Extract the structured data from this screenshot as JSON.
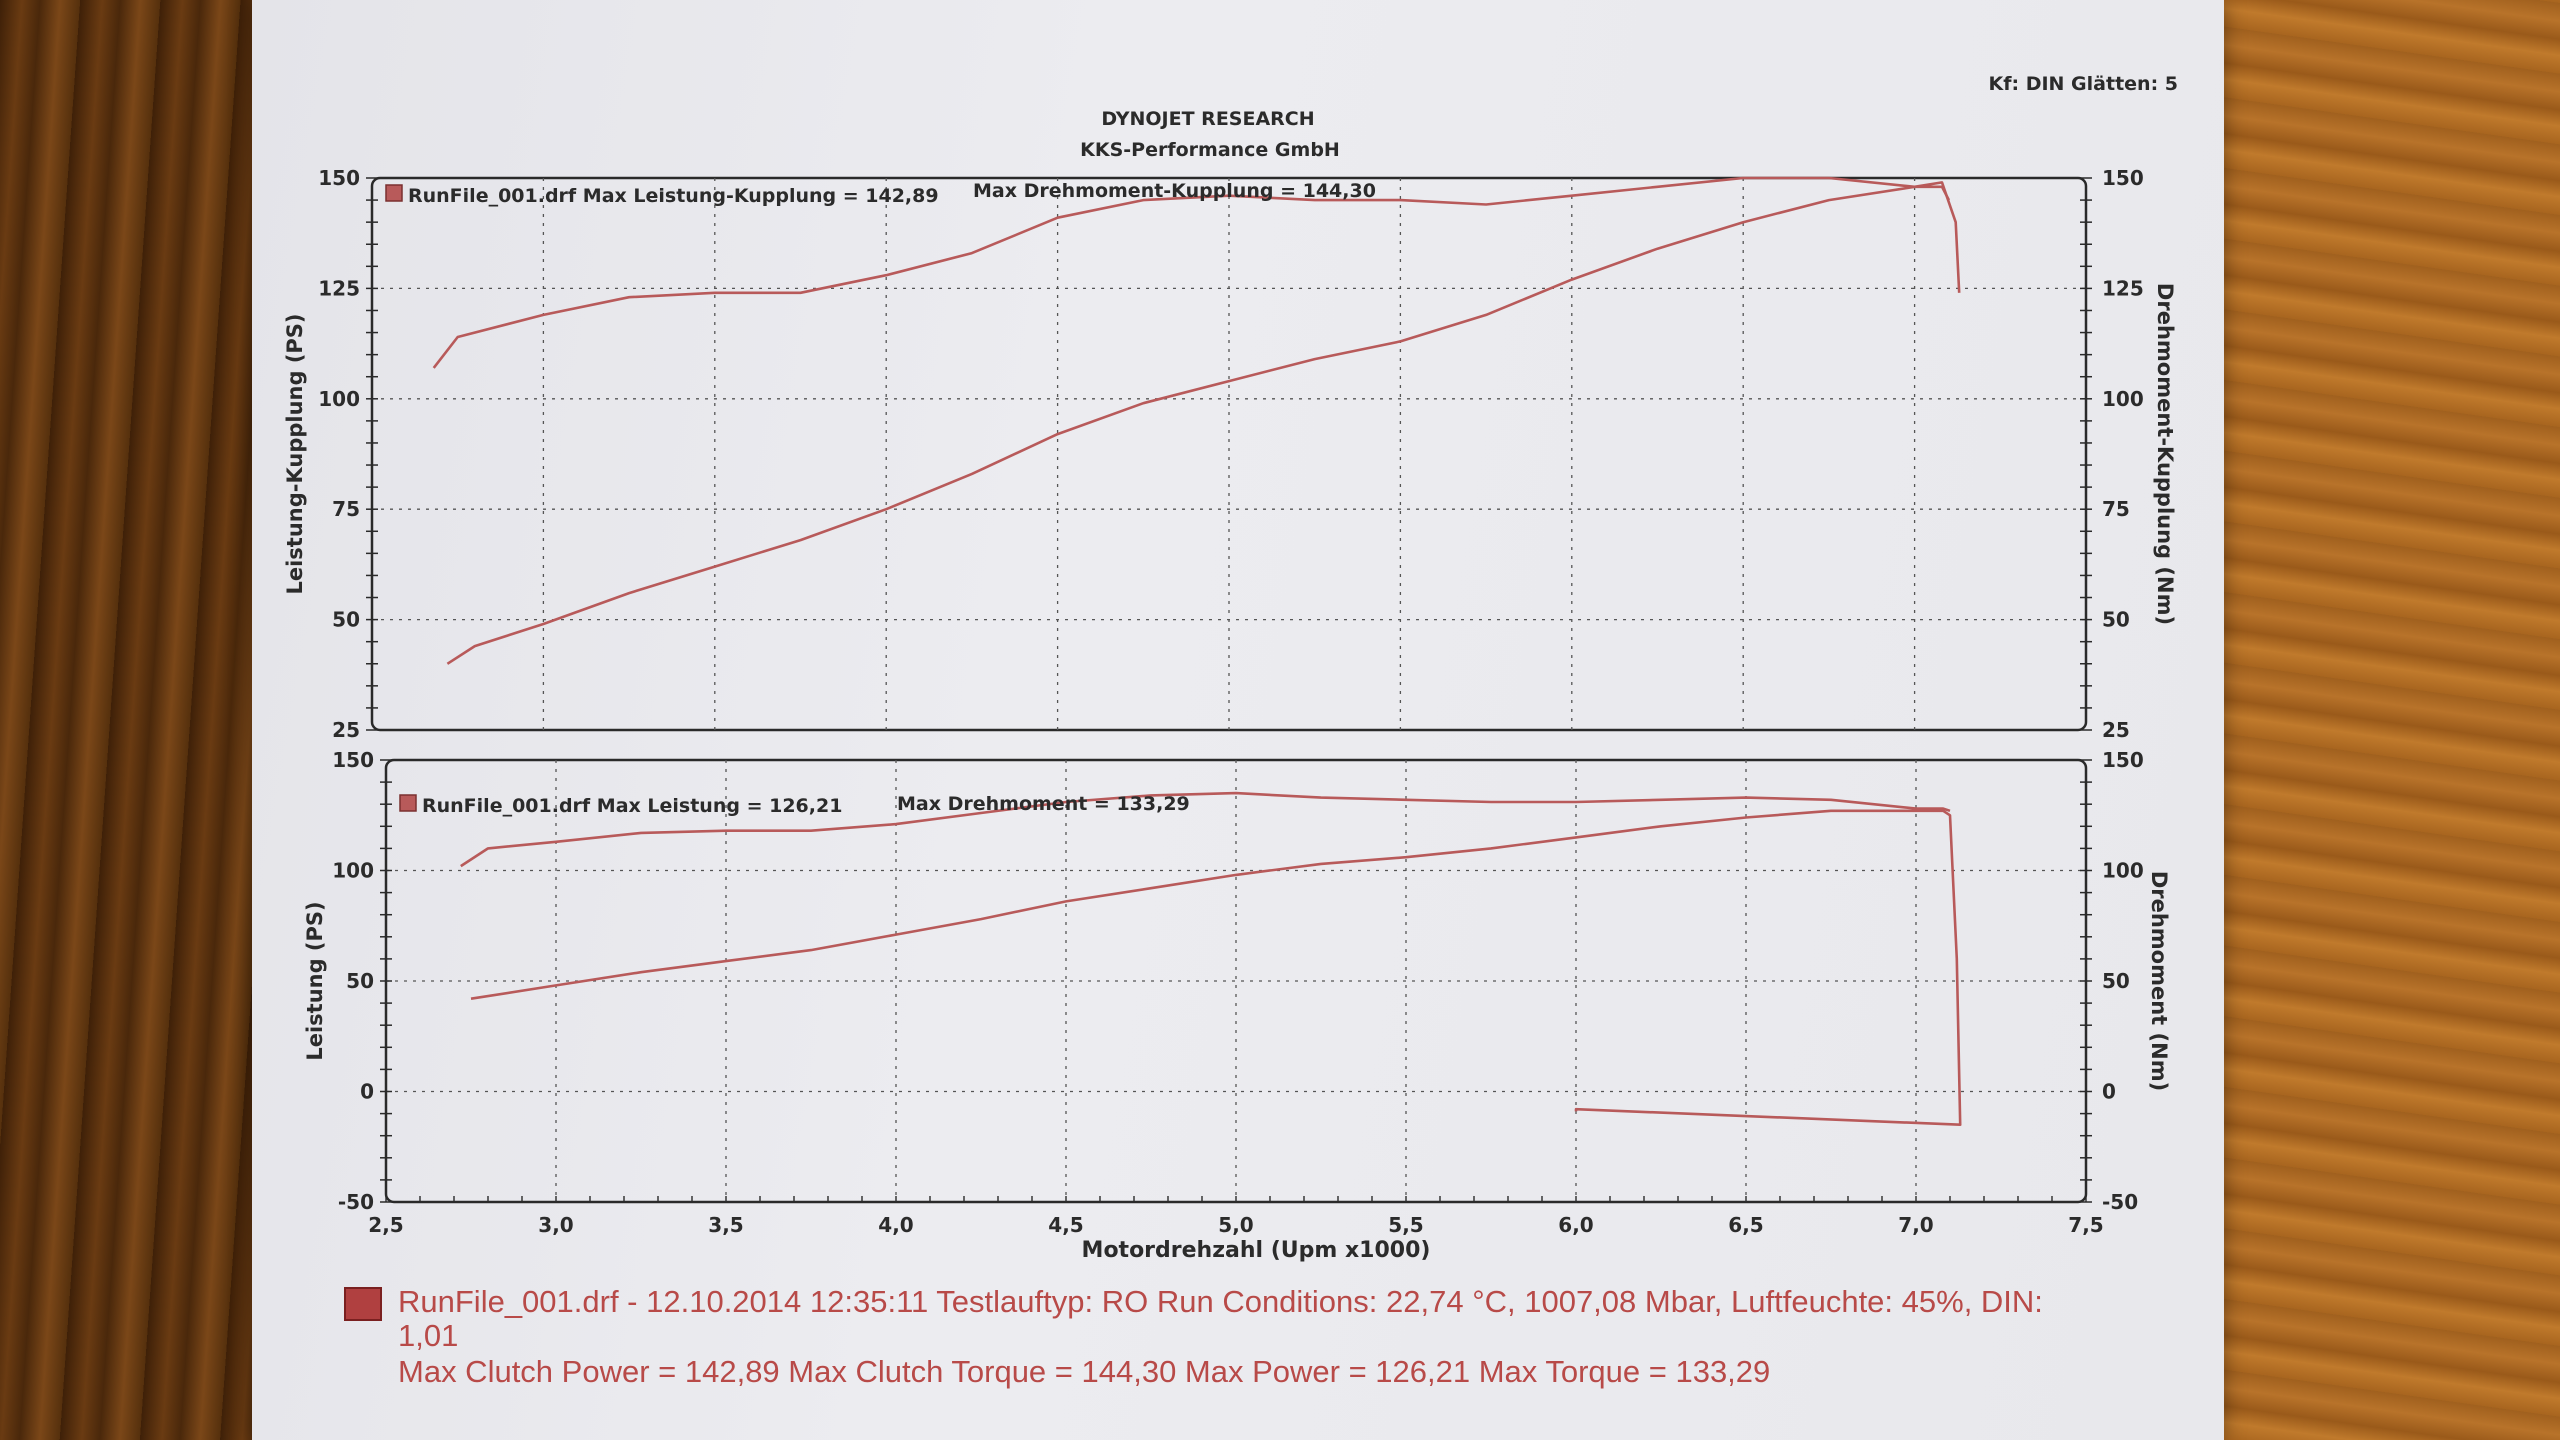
{
  "header": {
    "title1": "DYNOJET RESEARCH",
    "title2": "KKS-Performance GmbH",
    "settings": "Kf: DIN  Glätten: 5"
  },
  "colors": {
    "curve": "#b85a5a",
    "grid": "#555555",
    "frame": "#2a2a2a",
    "footer_text": "#b84a48"
  },
  "chart_data": [
    {
      "type": "line",
      "ylabel_left": "Leistung-Kupplung (PS)",
      "ylabel_right": "Drehmoment-Kupplung (Nm)",
      "legend": "RunFile_001.drf Max Leistung-Kupplung = 142,89",
      "legend2": "Max Drehmoment-Kupplung = 144,30",
      "xlim": [
        2.5,
        7.5
      ],
      "ylim_left": [
        25,
        150
      ],
      "ylim_right": [
        25,
        150
      ],
      "yticks_left": [
        "150",
        "125",
        "100",
        "75",
        "50",
        "25"
      ],
      "yticks_right": [
        "150",
        "125",
        "100",
        "75",
        "50",
        "25"
      ],
      "grid": true,
      "series": [
        {
          "x": [
            2.72,
            2.8,
            3.0,
            3.25,
            3.5,
            3.75,
            4.0,
            4.25,
            4.5,
            4.75,
            5.0,
            5.25,
            5.5,
            5.75,
            6.0,
            6.25,
            6.5,
            6.75,
            7.0,
            7.08,
            7.12,
            7.13
          ],
          "y": [
            40,
            44,
            49,
            56,
            62,
            68,
            75,
            83,
            92,
            99,
            104,
            109,
            113,
            119,
            127,
            134,
            140,
            145,
            148,
            149,
            140,
            124
          ]
        },
        {
          "x": [
            2.68,
            2.75,
            3.0,
            3.25,
            3.5,
            3.75,
            4.0,
            4.25,
            4.5,
            4.75,
            5.0,
            5.25,
            5.5,
            5.75,
            6.0,
            6.25,
            6.5,
            6.75,
            7.0,
            7.08,
            7.1
          ],
          "y": [
            107,
            114,
            119,
            123,
            124,
            124,
            128,
            133,
            141,
            145,
            146,
            145,
            145,
            144,
            146,
            148,
            150,
            150,
            148,
            148,
            145
          ]
        }
      ]
    },
    {
      "type": "line",
      "ylabel_left": "Leistung (PS)",
      "ylabel_right": "Drehmoment (Nm)",
      "xlabel": "Motordrehzahl (Upm x1000)",
      "legend": "RunFile_001.drf Max Leistung = 126,21",
      "legend2": "Max Drehmoment = 133,29",
      "xlim": [
        2.5,
        7.5
      ],
      "ylim_left": [
        -50,
        150
      ],
      "ylim_right": [
        -50,
        150
      ],
      "yticks_left": [
        "150",
        "100",
        "50",
        "0",
        "-50"
      ],
      "yticks_right": [
        "150",
        "100",
        "50",
        "0",
        "-50"
      ],
      "xticks": [
        "2,5",
        "3,0",
        "3,5",
        "4,0",
        "4,5",
        "5,0",
        "5,5",
        "6,0",
        "6,5",
        "7,0",
        "7,5"
      ],
      "grid": true,
      "series": [
        {
          "x": [
            2.75,
            3.0,
            3.25,
            3.5,
            3.75,
            4.0,
            4.25,
            4.5,
            4.75,
            5.0,
            5.25,
            5.5,
            5.75,
            6.0,
            6.25,
            6.5,
            6.75,
            7.0,
            7.08,
            7.1,
            7.12,
            7.13,
            6.0,
            6.0
          ],
          "y": [
            42,
            48,
            54,
            59,
            64,
            71,
            78,
            86,
            92,
            98,
            103,
            106,
            110,
            115,
            120,
            124,
            127,
            127,
            127,
            125,
            60,
            -15,
            -8,
            -9
          ]
        },
        {
          "x": [
            2.72,
            2.8,
            3.0,
            3.25,
            3.5,
            3.75,
            4.0,
            4.25,
            4.5,
            4.75,
            5.0,
            5.25,
            5.5,
            5.75,
            6.0,
            6.25,
            6.5,
            6.75,
            7.0,
            7.08,
            7.1
          ],
          "y": [
            102,
            110,
            113,
            117,
            118,
            118,
            121,
            126,
            131,
            134,
            135,
            133,
            132,
            131,
            131,
            132,
            133,
            132,
            128,
            128,
            127
          ]
        }
      ]
    }
  ],
  "footer": {
    "line1": "RunFile_001.drf - 12.10.2014 12:35:11  Testlauftyp: RO  Run Conditions: 22,74 °C, 1007,08 Mbar,  Luftfeuchte: 45%, DIN:",
    "line2": "1,01",
    "line3": "Max Clutch Power = 142,89  Max Clutch Torque = 144,30  Max Power = 126,21  Max Torque = 133,29"
  }
}
